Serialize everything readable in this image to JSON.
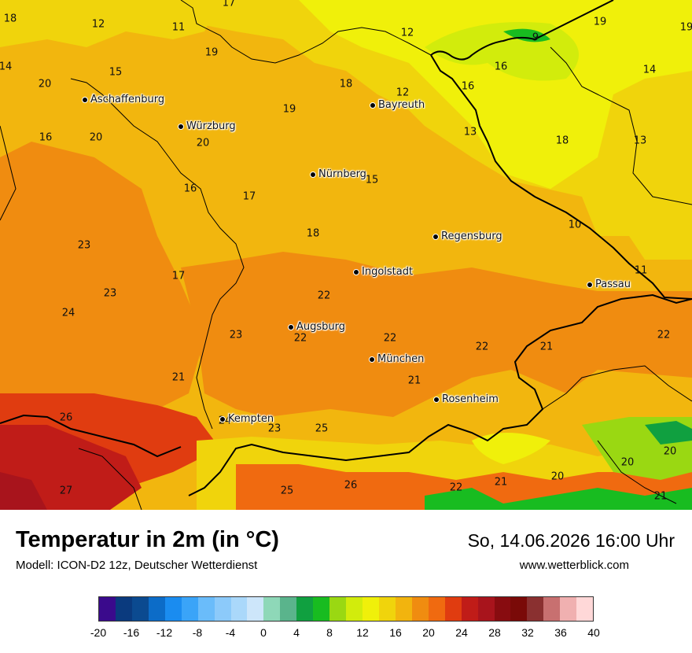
{
  "map": {
    "cities": [
      {
        "name": "Aschaffenburg"
      },
      {
        "name": "Würzburg"
      },
      {
        "name": "Bayreuth"
      },
      {
        "name": "Nürnberg"
      },
      {
        "name": "Regensburg"
      },
      {
        "name": "Ingolstadt"
      },
      {
        "name": "Passau"
      },
      {
        "name": "Augsburg"
      },
      {
        "name": "München"
      },
      {
        "name": "Rosenheim"
      },
      {
        "name": "Kempten"
      }
    ],
    "values": [
      "18",
      "12",
      "11",
      "17",
      "12",
      "9",
      "19",
      "19",
      "14",
      "20",
      "15",
      "19",
      "18",
      "12",
      "16",
      "16",
      "14",
      "16",
      "20",
      "20",
      "19",
      "13",
      "18",
      "13",
      "15",
      "16",
      "17",
      "10",
      "23",
      "18",
      "17",
      "11",
      "23",
      "22",
      "24",
      "23",
      "22",
      "22",
      "22",
      "21",
      "22",
      "21",
      "21",
      "26",
      "23",
      "25",
      "24",
      "20",
      "20",
      "20",
      "27",
      "25",
      "26",
      "21",
      "22",
      "21"
    ]
  },
  "footer": {
    "title": "Temperatur in 2m (in °C)",
    "model": "Modell: ICON-D2 12z, Deutscher Wetterdienst",
    "datetime": "So, 14.06.2026 16:00 Uhr",
    "site": "www.wetterblick.com"
  },
  "legend": {
    "colors": [
      "#3a0a8c",
      "#0a3a7e",
      "#0b4a90",
      "#0c6cc8",
      "#1a8cf0",
      "#3aa4f8",
      "#6abcfa",
      "#8ccafa",
      "#aad8fa",
      "#cde6fa",
      "#8ed8b8",
      "#5ab48c",
      "#10a040",
      "#18bc20",
      "#9ad812",
      "#d2ec0c",
      "#f0f00a",
      "#f0d40c",
      "#f2b40e",
      "#f08c10",
      "#f06a10",
      "#e03c10",
      "#c01c18",
      "#a8141c",
      "#880c10",
      "#7a0a08",
      "#8a3030",
      "#c87070",
      "#f0b0b0",
      "#ffd8d8"
    ],
    "ticks": [
      "-20",
      "-16",
      "-12",
      "-8",
      "-4",
      "0",
      "4",
      "8",
      "12",
      "16",
      "20",
      "24",
      "28",
      "32",
      "36",
      "40"
    ]
  }
}
